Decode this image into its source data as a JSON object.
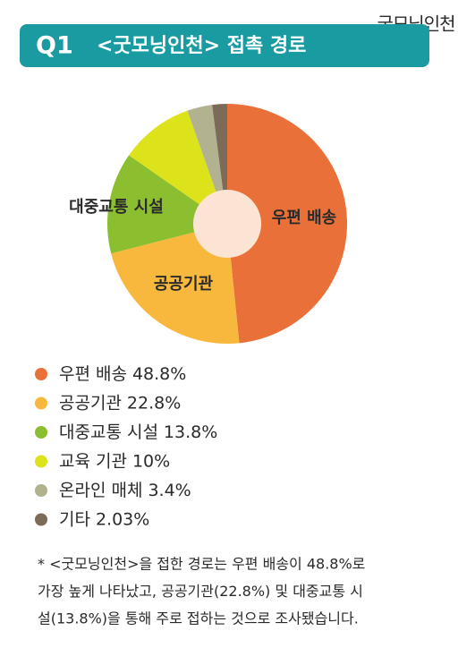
{
  "logo": "굿모닝인천",
  "chart_data": {
    "type": "pie",
    "label": "Q1",
    "title": "<굿모닝인천> 접촉 경로",
    "categories": [
      "우편 배송",
      "공공기관",
      "대중교통 시설",
      "교육 기관",
      "온라인 매체",
      "기타"
    ],
    "values": [
      48.8,
      22.8,
      13.8,
      10,
      3.4,
      2.03
    ],
    "value_labels": [
      "48.8%",
      "22.8%",
      "13.8%",
      "10%",
      "3.4%",
      "2.03%"
    ],
    "colors": [
      "#ea7039",
      "#f7b83d",
      "#8cbf2f",
      "#dde31b",
      "#b2b190",
      "#7b6b58"
    ],
    "legend": "bottom-left"
  },
  "footnote": [
    "* <굿모닝인천>을 접한 경로는 우편 배송이 48.8%로",
    "가장 높게 나타났고, 공공기관(22.8%) 및 대중교통 시",
    "설(13.8%)을 통해 주로 접하는 것으로 조사됐습니다."
  ]
}
